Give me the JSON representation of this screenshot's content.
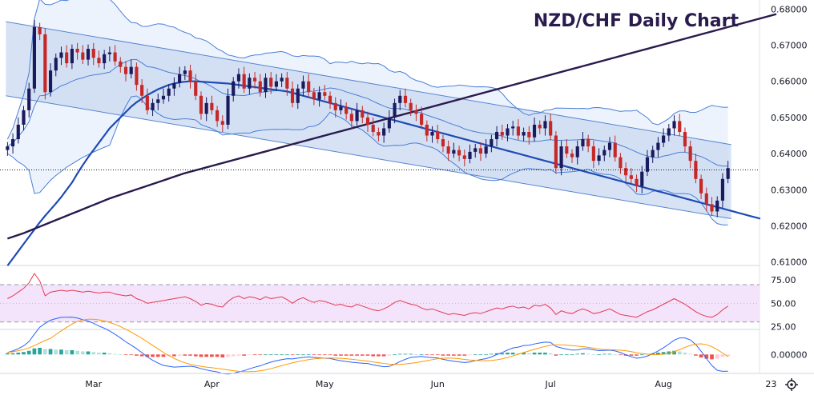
{
  "chart_data": [
    {
      "type": "candlestick",
      "title": "NZD/CHF Daily Chart",
      "ylim": [
        0.6095,
        0.6825
      ],
      "y_ticks": [
        "0.68000",
        "0.67000",
        "0.66000",
        "0.65000",
        "0.64000",
        "0.63000",
        "0.62000",
        "0.61000"
      ],
      "y_tick_values": [
        0.68,
        0.67,
        0.66,
        0.65,
        0.64,
        0.63,
        0.62,
        0.61
      ],
      "x_tick_labels": [
        "Mar",
        "Apr",
        "May",
        "Jun",
        "Jul",
        "Aug",
        "23"
      ],
      "x_tick_index": [
        16,
        38,
        59,
        80,
        101,
        122,
        142
      ],
      "last_price": 0.6355,
      "up_color": "#26a69a",
      "down_color": "#c62828",
      "close": [
        0.642,
        0.644,
        0.648,
        0.652,
        0.658,
        0.675,
        0.673,
        0.657,
        0.663,
        0.6665,
        0.668,
        0.665,
        0.669,
        0.668,
        0.666,
        0.669,
        0.6665,
        0.665,
        0.6675,
        0.668,
        0.6655,
        0.664,
        0.662,
        0.664,
        0.659,
        0.656,
        0.652,
        0.654,
        0.655,
        0.656,
        0.658,
        0.6595,
        0.662,
        0.663,
        0.66,
        0.656,
        0.651,
        0.654,
        0.652,
        0.649,
        0.648,
        0.656,
        0.66,
        0.662,
        0.658,
        0.661,
        0.66,
        0.657,
        0.661,
        0.6585,
        0.66,
        0.661,
        0.658,
        0.654,
        0.658,
        0.66,
        0.657,
        0.655,
        0.657,
        0.656,
        0.654,
        0.652,
        0.653,
        0.651,
        0.649,
        0.652,
        0.65,
        0.648,
        0.646,
        0.645,
        0.647,
        0.65,
        0.654,
        0.656,
        0.654,
        0.652,
        0.651,
        0.648,
        0.645,
        0.646,
        0.644,
        0.642,
        0.64,
        0.641,
        0.6395,
        0.6385,
        0.6405,
        0.6415,
        0.64,
        0.642,
        0.644,
        0.646,
        0.645,
        0.647,
        0.6475,
        0.645,
        0.646,
        0.6445,
        0.648,
        0.647,
        0.649,
        0.645,
        0.636,
        0.642,
        0.64,
        0.639,
        0.642,
        0.644,
        0.642,
        0.638,
        0.6395,
        0.641,
        0.643,
        0.639,
        0.636,
        0.634,
        0.633,
        0.631,
        0.635,
        0.639,
        0.641,
        0.643,
        0.645,
        0.647,
        0.649,
        0.646,
        0.642,
        0.638,
        0.633,
        0.629,
        0.626,
        0.624,
        0.627,
        0.633,
        0.636
      ],
      "series": [
        {
          "name": "",
          "color": "#1e4bb4",
          "values_start": 0,
          "values": [
            0.609,
            0.611,
            0.613,
            0.615,
            0.617,
            0.619,
            0.621,
            0.6228,
            0.6245,
            0.6262,
            0.628,
            0.63,
            0.632,
            0.6345,
            0.6368,
            0.639,
            0.641,
            0.643,
            0.645,
            0.647,
            0.6485,
            0.65,
            0.6515,
            0.653,
            0.6542,
            0.6552,
            0.6562,
            0.657,
            0.6578,
            0.6584,
            0.659,
            0.6594,
            0.6597,
            0.6599,
            0.66,
            0.66,
            0.6599,
            0.6598,
            0.6597,
            0.6596,
            0.6595,
            0.6594,
            0.6592,
            0.659,
            0.6588,
            0.6586,
            0.6584,
            0.6582,
            0.658,
            0.6578,
            0.6576,
            0.6574,
            0.6572,
            0.6568,
            0.6564,
            0.656,
            0.6556,
            0.6552,
            0.6548,
            0.6544,
            0.654,
            0.6536,
            0.6532,
            0.6528,
            0.6524,
            0.652,
            0.6516,
            0.6512,
            0.6508,
            0.6504,
            0.65,
            0.6496,
            0.6492,
            0.6488,
            0.6484,
            0.648,
            0.6476,
            0.6472,
            0.6468,
            0.6464,
            0.646,
            0.6456,
            0.6452,
            0.6448,
            0.6444,
            0.644,
            0.6436,
            0.6432,
            0.6428,
            0.6424,
            0.642,
            0.6416,
            0.6412,
            0.6408,
            0.6404,
            0.64,
            0.6396,
            0.6392,
            0.6388,
            0.6384,
            0.638,
            0.6376,
            0.6372,
            0.6368,
            0.6364,
            0.636,
            0.6356,
            0.6352,
            0.6348,
            0.6344,
            0.634,
            0.6336,
            0.6332,
            0.6328,
            0.6324,
            0.632,
            0.6316,
            0.6312,
            0.6308,
            0.6304,
            0.63,
            0.6296,
            0.6292,
            0.6288,
            0.6284,
            0.628,
            0.6276,
            0.6272,
            0.6268,
            0.6264,
            0.626,
            0.6256,
            0.6252,
            0.6248,
            0.6244,
            0.624,
            0.6236,
            0.6232,
            0.6228,
            0.6224,
            0.622
          ]
        },
        {
          "name": "",
          "color": "#2a1b4e",
          "values_start": 0,
          "values": [
            0.6165,
            0.617,
            0.6175,
            0.618,
            0.6186,
            0.6192,
            0.6198,
            0.6204,
            0.621,
            0.6216,
            0.6222,
            0.6228,
            0.6234,
            0.624,
            0.6246,
            0.6252,
            0.6258,
            0.6264,
            0.627,
            0.6276,
            0.6281,
            0.6286,
            0.6291,
            0.6296,
            0.6301,
            0.6306,
            0.6311,
            0.6316,
            0.6321,
            0.6326,
            0.6331,
            0.6336,
            0.6341,
            0.6346,
            0.635,
            0.6354,
            0.6358,
            0.6362,
            0.6366,
            0.637,
            0.6374,
            0.6378,
            0.6382,
            0.6386,
            0.639,
            0.6394,
            0.6398,
            0.6402,
            0.6406,
            0.641,
            0.6414,
            0.6418,
            0.6422,
            0.6426,
            0.643,
            0.6434,
            0.6438,
            0.6442,
            0.6446,
            0.645,
            0.6454,
            0.6458,
            0.6462,
            0.6466,
            0.647,
            0.6474,
            0.6478,
            0.6482,
            0.6486,
            0.649,
            0.6494,
            0.6498,
            0.6502,
            0.6506,
            0.651,
            0.6514,
            0.6518,
            0.6522,
            0.6526,
            0.653,
            0.6534,
            0.6538,
            0.6542,
            0.6546,
            0.655,
            0.6554,
            0.6558,
            0.6562,
            0.6566,
            0.657,
            0.6574,
            0.6578,
            0.6582,
            0.6586,
            0.659,
            0.6594,
            0.6598,
            0.6602,
            0.6606,
            0.661,
            0.6614,
            0.6618,
            0.6622,
            0.6626,
            0.663,
            0.6634,
            0.6638,
            0.6642,
            0.6646,
            0.665,
            0.6654,
            0.6658,
            0.6662,
            0.6666,
            0.667,
            0.6674,
            0.6678,
            0.6682,
            0.6686,
            0.669,
            0.6694,
            0.6698,
            0.6702,
            0.6706,
            0.671,
            0.6714,
            0.6718,
            0.6722,
            0.6726,
            0.673,
            0.6734,
            0.6738,
            0.6742,
            0.6746,
            0.675,
            0.6754,
            0.6758,
            0.6762,
            0.6766,
            0.677,
            0.6774,
            0.6778,
            0.6782,
            0.6786
          ]
        }
      ],
      "channel": {
        "upper_start": 0.6765,
        "upper_end": 0.6425,
        "lower_start": 0.656,
        "lower_end": 0.622,
        "fill": "#c9d9f2",
        "stroke": "#5a85d0"
      },
      "bollinger": {
        "color": "#4a7fd6",
        "fill": "#dfeafa"
      }
    },
    {
      "type": "line",
      "ylim": [
        22,
        88
      ],
      "y_ticks": [
        "75.00",
        "50.00",
        "25.00"
      ],
      "y_tick_values": [
        75,
        50,
        25
      ],
      "upper_level": 70,
      "lower_level": 30,
      "band_color": "#f3e3fb",
      "line_color": "#e53950",
      "values": [
        55,
        58,
        62,
        66,
        72,
        82,
        74,
        58,
        62,
        63,
        64,
        63,
        64,
        63,
        62,
        63,
        62,
        61,
        62,
        62,
        60,
        59,
        58,
        59,
        55,
        53,
        50,
        51,
        52,
        53,
        54,
        55,
        56,
        57,
        55,
        52,
        48,
        50,
        49,
        47,
        46,
        52,
        56,
        58,
        55,
        57,
        56,
        54,
        57,
        55,
        56,
        57,
        54,
        50,
        54,
        56,
        53,
        51,
        53,
        52,
        50,
        48,
        49,
        47,
        46,
        49,
        47,
        45,
        43,
        42,
        44,
        47,
        51,
        53,
        51,
        49,
        48,
        45,
        43,
        44,
        42,
        40,
        38,
        39,
        38,
        37,
        39,
        40,
        39,
        41,
        43,
        45,
        44,
        46,
        47,
        45,
        46,
        44,
        48,
        47,
        49,
        45,
        38,
        42,
        40,
        39,
        42,
        44,
        42,
        39,
        40,
        42,
        44,
        41,
        38,
        37,
        36,
        35,
        38,
        41,
        43,
        46,
        49,
        52,
        55,
        52,
        49,
        45,
        41,
        38,
        36,
        35,
        38,
        43,
        47
      ]
    },
    {
      "type": "bar",
      "ylim": [
        -0.003,
        0.004
      ],
      "y_ticks": [
        "0.00000"
      ],
      "y_tick_values": [
        0
      ],
      "histogram": [
        0.0002,
        0.0002,
        0.0003,
        0.0004,
        0.0006,
        0.001,
        0.0011,
        0.0009,
        0.0009,
        0.0008,
        0.0008,
        0.0007,
        0.0007,
        0.0006,
        0.0005,
        0.0005,
        0.0004,
        0.0003,
        0.0003,
        0.0002,
        0.0001,
        0.0,
        -0.0001,
        -0.0001,
        -0.0002,
        -0.0003,
        -0.0004,
        -0.0004,
        -0.0004,
        -0.0004,
        -0.0003,
        -0.0003,
        -0.0002,
        -0.0002,
        -0.0002,
        -0.0003,
        -0.0004,
        -0.0004,
        -0.0004,
        -0.0004,
        -0.0005,
        -0.0004,
        -0.0003,
        -0.0002,
        -0.0002,
        -0.0001,
        -0.0001,
        -0.0001,
        0.0,
        0.0,
        0.0,
        0.0,
        0.0,
        -0.0001,
        0.0,
        0.0,
        0.0,
        -0.0001,
        -0.0001,
        -0.0001,
        -0.0001,
        -0.0002,
        -0.0002,
        -0.0002,
        -0.0002,
        -0.0002,
        -0.0002,
        -0.0002,
        -0.0003,
        -0.0003,
        -0.0003,
        -0.0002,
        0.0,
        0.0001,
        0.0001,
        0.0001,
        0.0,
        0.0,
        -0.0001,
        -0.0001,
        -0.0001,
        -0.0002,
        -0.0002,
        -0.0002,
        -0.0002,
        -0.0002,
        -0.0001,
        0.0,
        0.0,
        0.0,
        0.0001,
        0.0002,
        0.0002,
        0.0003,
        0.0003,
        0.0002,
        0.0003,
        0.0002,
        0.0003,
        0.0003,
        0.0003,
        0.0002,
        -0.0002,
        0.0,
        0.0,
        0.0,
        0.0001,
        0.0002,
        0.0001,
        0.0,
        0.0,
        0.0001,
        0.0001,
        0.0,
        -0.0001,
        -0.0002,
        -0.0002,
        -0.0002,
        0.0,
        0.0001,
        0.0002,
        0.0003,
        0.0004,
        0.0005,
        0.0006,
        0.0005,
        0.0003,
        0.0001,
        -0.0002,
        -0.0005,
        -0.0007,
        -0.0008,
        -0.0007,
        -0.0004,
        -0.0003
      ],
      "up_color": "#26a69a",
      "down_color": "#ef5350",
      "macd_color": "#2962ff",
      "signal_color": "#ff9800"
    }
  ]
}
